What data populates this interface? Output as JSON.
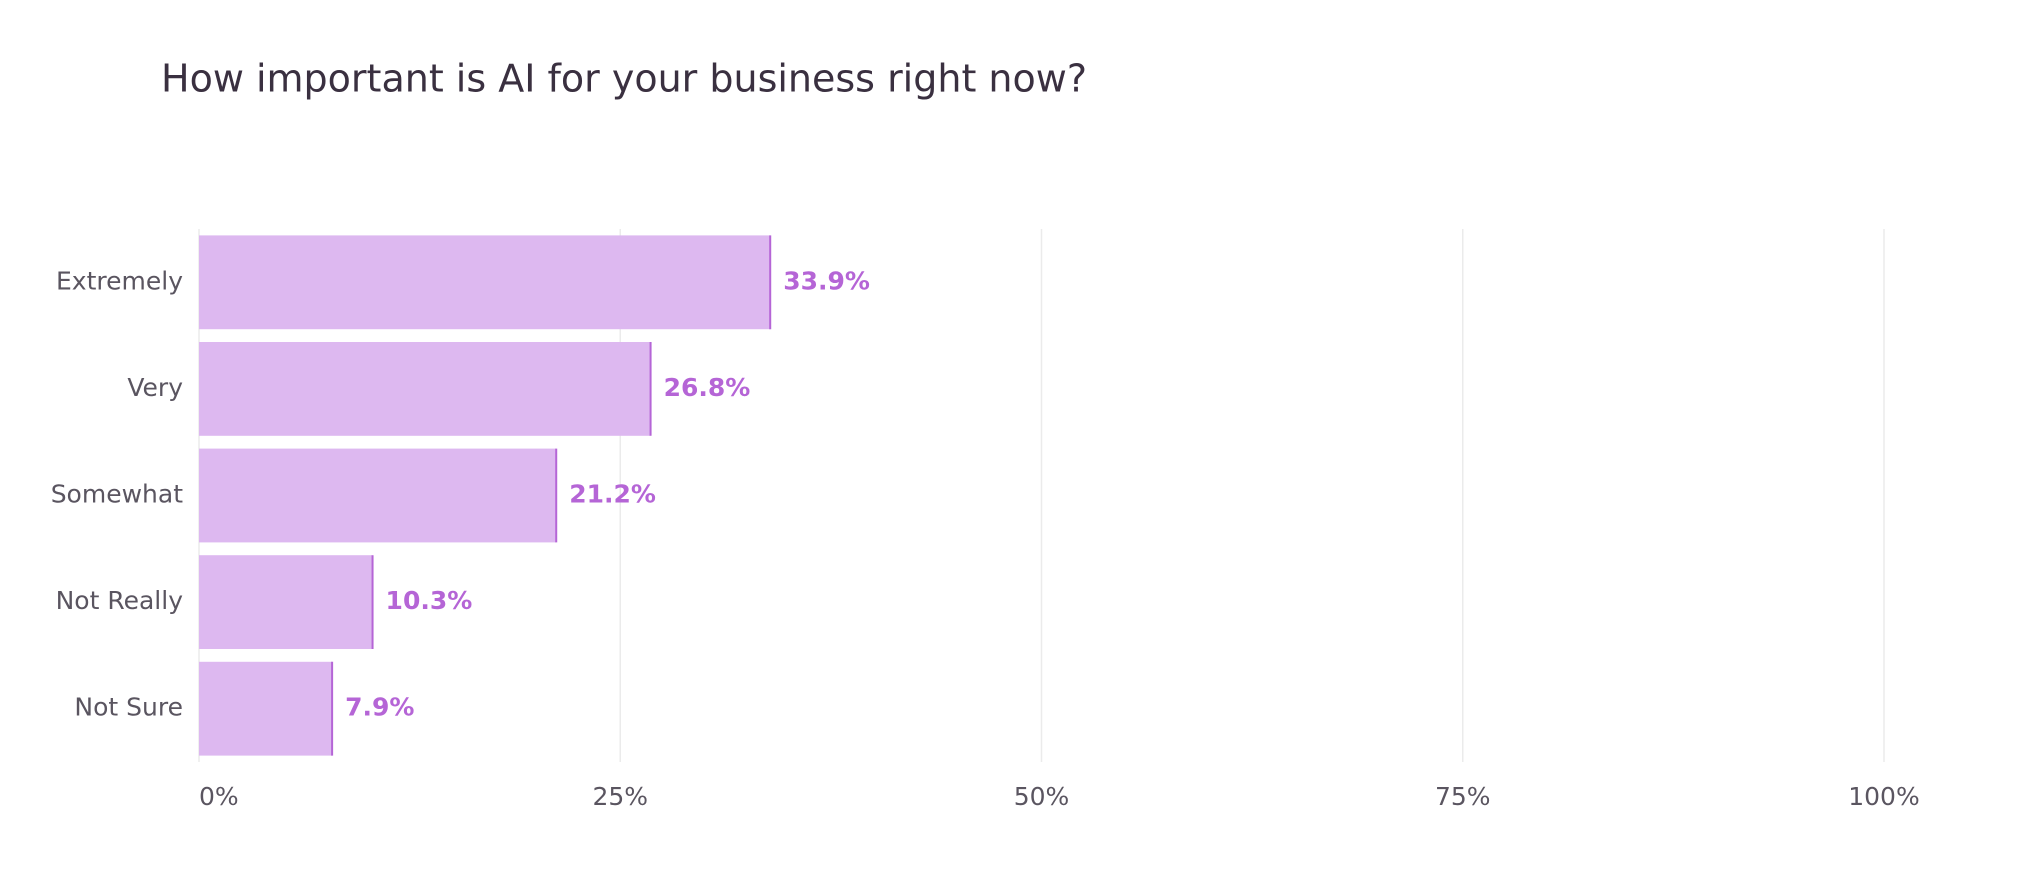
{
  "chart_data": {
    "type": "hbar",
    "title": "How important is AI for your business right now?",
    "categories": [
      "Extremely",
      "Very",
      "Somewhat",
      "Not Really",
      "Not Sure"
    ],
    "values": [
      33.9,
      26.8,
      21.2,
      10.3,
      7.9
    ],
    "value_labels": [
      "33.9%",
      "26.8%",
      "21.2%",
      "10.3%",
      "7.9%"
    ],
    "color": "#ddb8f0",
    "edge_color": "#b565d6",
    "xlim": [
      0,
      100
    ],
    "xticks": [
      {
        "value": 0,
        "label": "0%"
      },
      {
        "value": 25,
        "label": "25%"
      },
      {
        "value": 50,
        "label": "50%"
      },
      {
        "value": 75,
        "label": "75%"
      },
      {
        "value": 100,
        "label": "100%"
      }
    ],
    "grid": true
  }
}
